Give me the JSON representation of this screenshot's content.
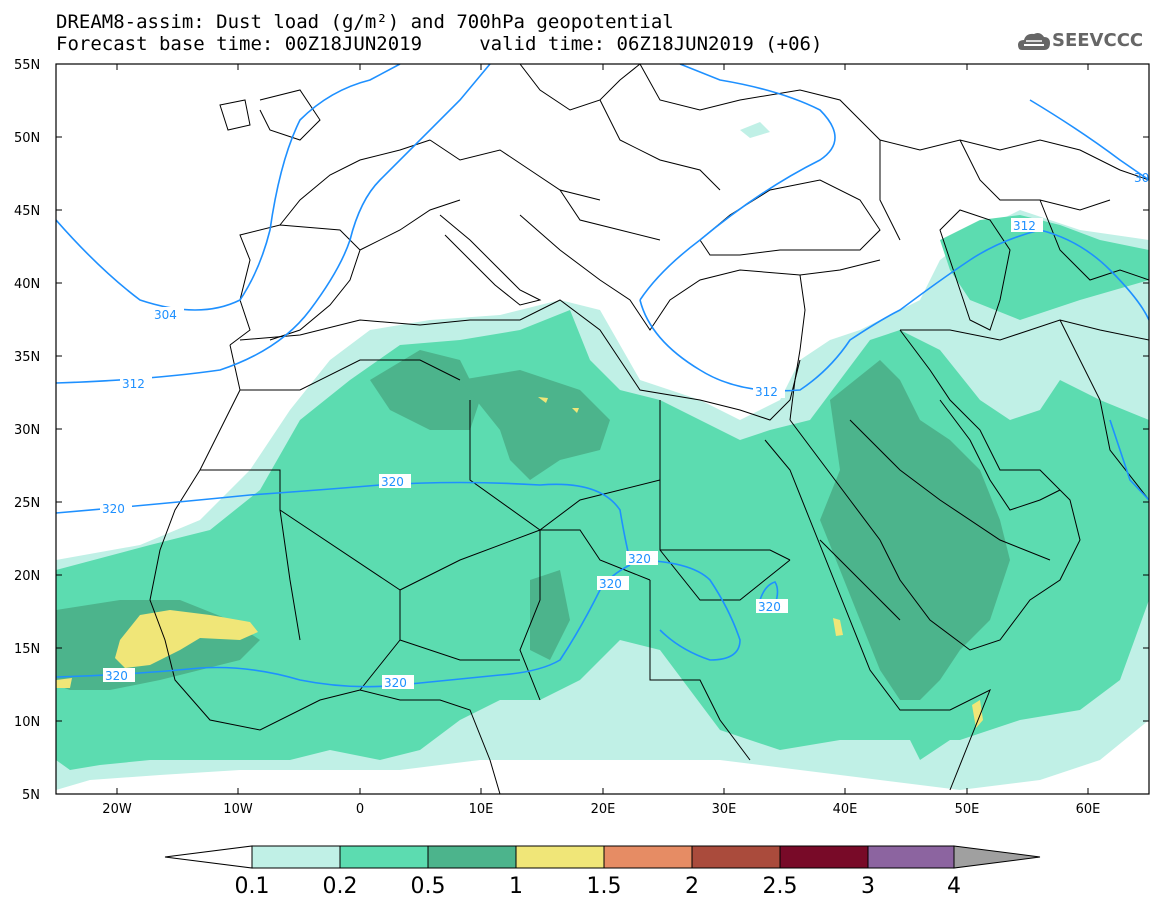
{
  "title": {
    "line1": "DREAM8-assim: Dust load (g/m²) and 700hPa geopotential",
    "line2": "Forecast base time: 00Z18JUN2019     valid time: 06Z18JUN2019 (+06)"
  },
  "logo": {
    "text": "SEEVCCC",
    "icon": "cloud-icon"
  },
  "map": {
    "lat_labels": [
      "55N",
      "50N",
      "45N",
      "40N",
      "35N",
      "30N",
      "25N",
      "20N",
      "15N",
      "10N",
      "5N"
    ],
    "lon_labels": [
      "20W",
      "10W",
      "0",
      "10E",
      "20E",
      "30E",
      "40E",
      "50E",
      "60E"
    ],
    "contour_labels": [
      "304",
      "312",
      "312",
      "312",
      "320",
      "320",
      "320",
      "320",
      "320",
      "320",
      "320",
      "30"
    ]
  },
  "colorbar": {
    "labels": [
      "0.1",
      "0.2",
      "0.5",
      "1",
      "1.5",
      "2",
      "2.5",
      "3",
      "4"
    ],
    "colors": [
      "#c0f0e6",
      "#5cdcb0",
      "#4cb48c",
      "#f0e678",
      "#e68c64",
      "#aa4b3c",
      "#780a28",
      "#8c64a0",
      "#a0a0a0"
    ]
  }
}
